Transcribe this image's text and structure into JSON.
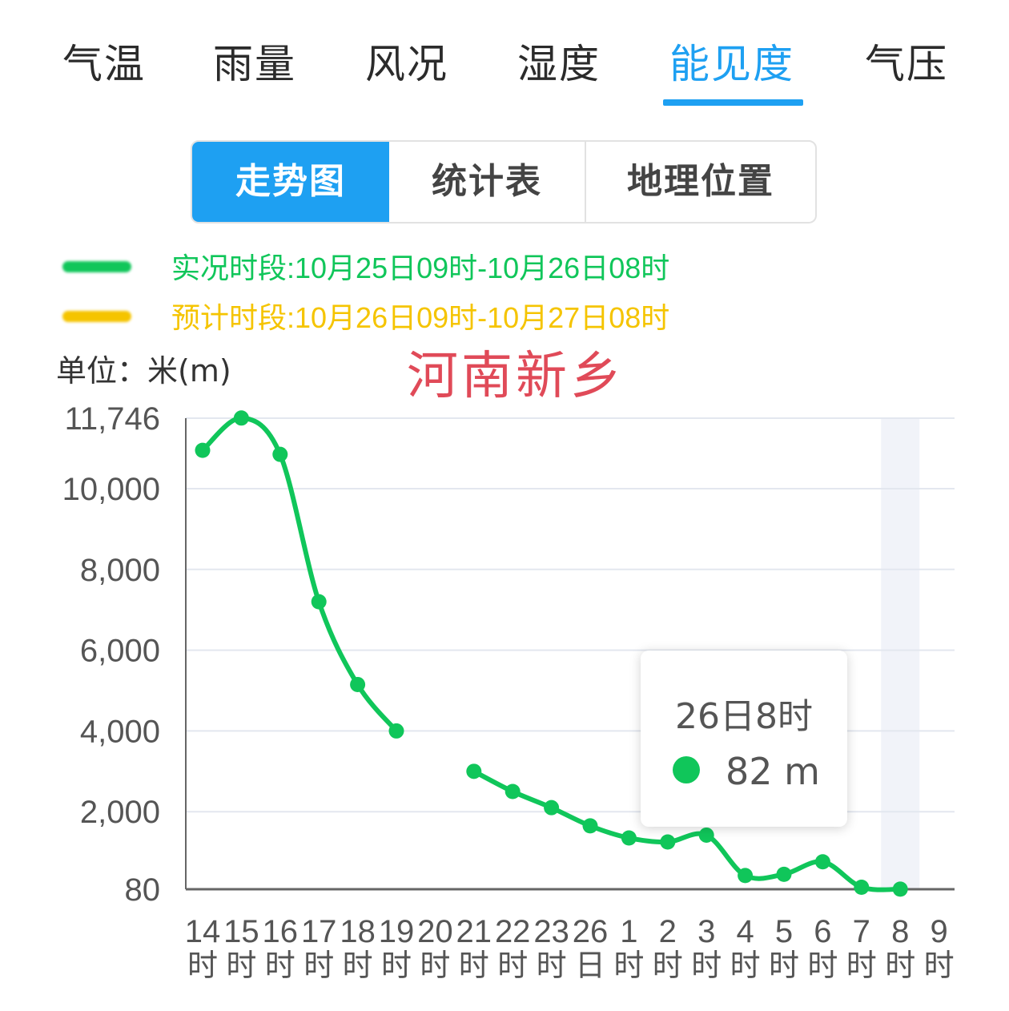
{
  "tabs": [
    {
      "label": "气温",
      "active": false
    },
    {
      "label": "雨量",
      "active": false
    },
    {
      "label": "风况",
      "active": false
    },
    {
      "label": "湿度",
      "active": false
    },
    {
      "label": "能见度",
      "active": true
    },
    {
      "label": "气压",
      "active": false
    }
  ],
  "view_switch": [
    "走势图",
    "统计表",
    "地理位置"
  ],
  "legend": {
    "observed": {
      "text": "实况时段:10月25日09时-10月26日08时",
      "color": "#10c65a"
    },
    "forecast": {
      "text": "预计时段:10月26日09时-10月27日08时",
      "color": "#f5c400"
    }
  },
  "unit_label": "单位：米(m)",
  "city_label": "河南新乡",
  "tooltip": {
    "title": "26日8时",
    "value": "82 m"
  },
  "colors": {
    "accent": "#1ea0f2",
    "line": "#10c65a",
    "city": "#e04a58",
    "grid": "#e3e7ef"
  },
  "chart_data": {
    "type": "line",
    "title": "",
    "ylabel": "单位：米(m)",
    "ylim": [
      80,
      11746
    ],
    "yticks": [
      "11,746",
      "10,000",
      "8,000",
      "6,000",
      "4,000",
      "2,000",
      "80"
    ],
    "ytick_values": [
      11746,
      10000,
      8000,
      6000,
      4000,
      2000,
      80
    ],
    "categories": [
      [
        "14",
        "时"
      ],
      [
        "15",
        "时"
      ],
      [
        "16",
        "时"
      ],
      [
        "17",
        "时"
      ],
      [
        "18",
        "时"
      ],
      [
        "19",
        "时"
      ],
      [
        "20",
        "时"
      ],
      [
        "21",
        "时"
      ],
      [
        "22",
        "时"
      ],
      [
        "23",
        "时"
      ],
      [
        "26",
        "日"
      ],
      [
        "1",
        "时"
      ],
      [
        "2",
        "时"
      ],
      [
        "3",
        "时"
      ],
      [
        "4",
        "时"
      ],
      [
        "5",
        "时"
      ],
      [
        "6",
        "时"
      ],
      [
        "7",
        "时"
      ],
      [
        "8",
        "时"
      ],
      [
        "9",
        "时"
      ]
    ],
    "series": [
      {
        "color": "#10c65a",
        "values": [
          10950,
          11750,
          10850,
          7200,
          5150,
          4000,
          null,
          3000,
          2500,
          2100,
          1650,
          1350,
          1250,
          1420,
          420,
          450,
          760,
          130,
          82,
          null
        ]
      }
    ],
    "highlight_index": 18,
    "grid": true
  }
}
